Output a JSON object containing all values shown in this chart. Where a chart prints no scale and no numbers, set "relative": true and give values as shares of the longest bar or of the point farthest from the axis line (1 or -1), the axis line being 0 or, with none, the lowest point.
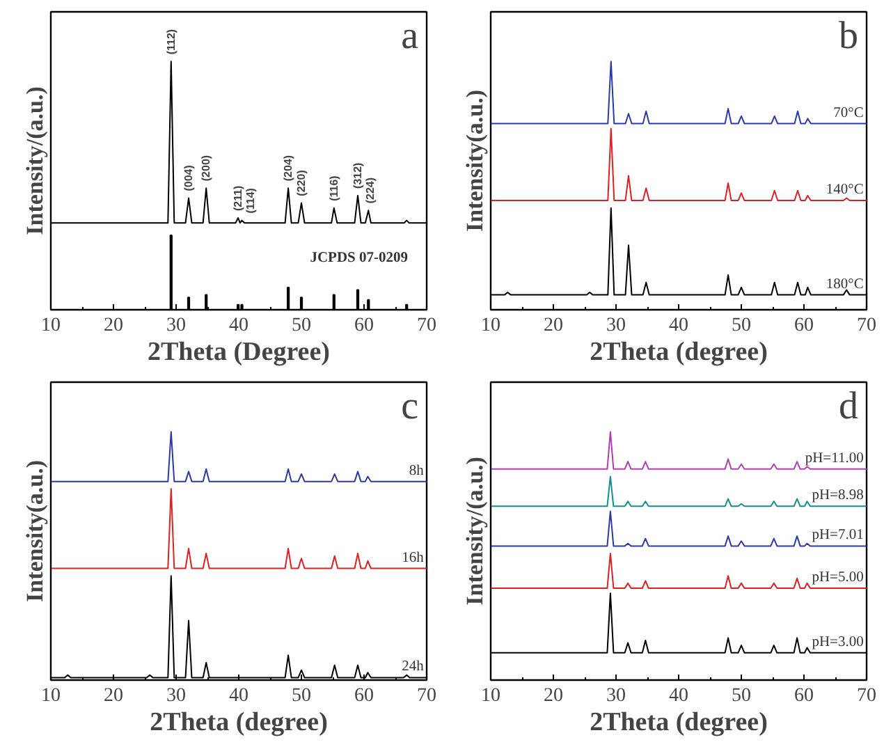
{
  "chart_data": [
    {
      "type": "line",
      "relative": true,
      "tick_labels": "x",
      "xlabel": "2Theta (Degree)",
      "ylabel": "Intensity/(a.u.)",
      "xlim": [
        10,
        70
      ],
      "xticks": [
        10,
        20,
        30,
        40,
        50,
        60,
        70
      ],
      "x": [
        10,
        28.7,
        29.2,
        29.7,
        31.5,
        32,
        32.5,
        34.3,
        34.8,
        35.3,
        39.5,
        39.9,
        40.2,
        40.5,
        40.9,
        47.4,
        47.9,
        48.4,
        49.5,
        50,
        50.5,
        54.8,
        55.2,
        55.7,
        58.5,
        59,
        59.5,
        60.2,
        60.7,
        61.1,
        66.4,
        66.8,
        67.2,
        70
      ],
      "series": [
        {
          "color": "#000000",
          "values": [
            0.35,
            0.35,
            1.0,
            0.35,
            0.35,
            0.45,
            0.35,
            0.35,
            0.49,
            0.35,
            0.35,
            0.37,
            0.35,
            0.36,
            0.35,
            0.35,
            0.49,
            0.35,
            0.35,
            0.43,
            0.35,
            0.35,
            0.41,
            0.35,
            0.35,
            0.46,
            0.35,
            0.35,
            0.4,
            0.35,
            0.35,
            0.36,
            0.35,
            0.35
          ]
        },
        {
          "type": "bar",
          "name": "JCPDS 07-0209",
          "color": "#000000",
          "x": [
            29.2,
            32,
            34.8,
            39.9,
            40.5,
            47.9,
            50,
            55.2,
            59,
            60.7,
            66.8
          ],
          "values": [
            0.3,
            0.05,
            0.06,
            0.02,
            0.02,
            0.09,
            0.05,
            0.06,
            0.08,
            0.04,
            0.02
          ]
        }
      ],
      "annotations": [
        "a",
        {
          "text": "(112)",
          "x": 29.2,
          "y": 1.0
        },
        {
          "text": "(004)",
          "x": 32,
          "y": 0.45
        },
        {
          "text": "(200)",
          "x": 34.8,
          "y": 0.49
        },
        {
          "text": "(211)",
          "x": 39.9,
          "y": 0.37
        },
        {
          "text": "(114)",
          "x": 40.5,
          "y": 0.36
        },
        {
          "text": "(204)",
          "x": 47.9,
          "y": 0.49
        },
        {
          "text": "(220)",
          "x": 50,
          "y": 0.43
        },
        {
          "text": "(116)",
          "x": 55.2,
          "y": 0.41
        },
        {
          "text": "(312)",
          "x": 59,
          "y": 0.46
        },
        {
          "text": "(224)",
          "x": 60.7,
          "y": 0.4
        }
      ]
    },
    {
      "type": "line",
      "relative": true,
      "tick_labels": "x",
      "xlabel": "2Theta (degree)",
      "ylabel": "Intensity(a.u.)",
      "xlim": [
        10,
        70
      ],
      "xticks": [
        10,
        20,
        30,
        40,
        50,
        60,
        70
      ],
      "x": [
        10,
        12.2,
        12.7,
        13.2,
        25.3,
        25.8,
        26.3,
        28.7,
        29.2,
        29.7,
        31.5,
        32,
        32.5,
        34.3,
        34.8,
        35.3,
        47.4,
        47.9,
        48.4,
        49.5,
        50,
        50.5,
        54.8,
        55.3,
        55.8,
        58.5,
        59,
        59.5,
        60.2,
        60.6,
        61.1,
        66.3,
        66.8,
        67.3,
        70
      ],
      "series": [
        {
          "name": "70°C",
          "color": "#2b3aa8",
          "values": [
            0.75,
            0.75,
            0.75,
            0.75,
            0.75,
            0.75,
            0.75,
            0.75,
            1.0,
            0.75,
            0.75,
            0.79,
            0.75,
            0.75,
            0.8,
            0.75,
            0.75,
            0.81,
            0.75,
            0.75,
            0.78,
            0.75,
            0.75,
            0.78,
            0.75,
            0.75,
            0.8,
            0.75,
            0.75,
            0.77,
            0.75,
            0.75,
            0.75,
            0.75,
            0.75
          ]
        },
        {
          "name": "140°C",
          "color": "#e02020",
          "values": [
            0.44,
            0.44,
            0.44,
            0.44,
            0.44,
            0.44,
            0.44,
            0.44,
            0.73,
            0.44,
            0.44,
            0.54,
            0.44,
            0.44,
            0.49,
            0.44,
            0.44,
            0.51,
            0.44,
            0.44,
            0.47,
            0.44,
            0.44,
            0.48,
            0.44,
            0.44,
            0.48,
            0.44,
            0.44,
            0.46,
            0.44,
            0.44,
            0.45,
            0.44,
            0.44
          ]
        },
        {
          "name": "180°C",
          "color": "#000000",
          "values": [
            0.06,
            0.06,
            0.07,
            0.06,
            0.06,
            0.07,
            0.06,
            0.06,
            0.41,
            0.06,
            0.06,
            0.26,
            0.06,
            0.06,
            0.11,
            0.06,
            0.06,
            0.14,
            0.06,
            0.06,
            0.09,
            0.06,
            0.06,
            0.11,
            0.06,
            0.06,
            0.11,
            0.06,
            0.06,
            0.09,
            0.06,
            0.06,
            0.08,
            0.06,
            0.06
          ]
        }
      ],
      "annotations": [
        "b"
      ]
    },
    {
      "type": "line",
      "relative": true,
      "tick_labels": "x",
      "xlabel": "2Theta (degree)",
      "ylabel": "Intensity(a.u.)",
      "xlim": [
        10,
        70
      ],
      "xticks": [
        10,
        20,
        30,
        40,
        50,
        60,
        70
      ],
      "x": [
        10,
        12.2,
        12.7,
        13.2,
        25.3,
        25.8,
        26.3,
        28.7,
        29.2,
        29.7,
        31.5,
        32,
        32.5,
        34.3,
        34.8,
        35.3,
        47.4,
        47.9,
        48.4,
        49.5,
        50,
        50.5,
        54.8,
        55.3,
        55.8,
        58.5,
        59,
        59.5,
        60.2,
        60.6,
        61.1,
        66.3,
        66.8,
        67.3,
        70
      ],
      "series": [
        {
          "name": "8h",
          "color": "#2b3aa8",
          "values": [
            0.8,
            0.8,
            0.8,
            0.8,
            0.8,
            0.8,
            0.8,
            0.8,
            1.0,
            0.8,
            0.8,
            0.84,
            0.8,
            0.8,
            0.85,
            0.8,
            0.8,
            0.85,
            0.8,
            0.8,
            0.83,
            0.8,
            0.8,
            0.83,
            0.8,
            0.8,
            0.84,
            0.8,
            0.8,
            0.82,
            0.8,
            0.8,
            0.8,
            0.8,
            0.8
          ]
        },
        {
          "name": "16h",
          "color": "#e02020",
          "values": [
            0.45,
            0.45,
            0.45,
            0.45,
            0.45,
            0.45,
            0.45,
            0.45,
            0.77,
            0.45,
            0.45,
            0.53,
            0.45,
            0.45,
            0.51,
            0.45,
            0.45,
            0.53,
            0.45,
            0.45,
            0.49,
            0.45,
            0.45,
            0.5,
            0.45,
            0.45,
            0.51,
            0.45,
            0.45,
            0.48,
            0.45,
            0.45,
            0.45,
            0.45,
            0.45
          ]
        },
        {
          "name": "24h",
          "color": "#000000",
          "values": [
            0.01,
            0.01,
            0.02,
            0.01,
            0.01,
            0.02,
            0.01,
            0.01,
            0.42,
            0.01,
            0.01,
            0.24,
            0.01,
            0.01,
            0.07,
            0.01,
            0.01,
            0.1,
            0.01,
            0.01,
            0.04,
            0.01,
            0.01,
            0.06,
            0.01,
            0.01,
            0.06,
            0.01,
            0.01,
            0.03,
            0.01,
            0.01,
            0.02,
            0.01,
            0.01
          ]
        }
      ],
      "annotations": [
        "c"
      ]
    },
    {
      "type": "line",
      "relative": true,
      "tick_labels": "x",
      "xlabel": "2Theta (degree)",
      "ylabel": "Intensity/(a.u.)",
      "xlim": [
        10,
        70
      ],
      "xticks": [
        10,
        20,
        30,
        40,
        50,
        60,
        70
      ],
      "x": [
        10,
        28.6,
        29.1,
        29.6,
        31.4,
        31.9,
        32.4,
        34.2,
        34.7,
        35.2,
        47.4,
        47.9,
        48.4,
        49.5,
        50,
        50.5,
        54.7,
        55.2,
        55.7,
        58.4,
        58.9,
        59.4,
        60.1,
        60.5,
        61,
        70
      ],
      "series": [
        {
          "name": "pH=11.00",
          "color": "#b040b0",
          "values": [
            0.85,
            0.85,
            1.0,
            0.85,
            0.85,
            0.88,
            0.85,
            0.85,
            0.88,
            0.85,
            0.85,
            0.89,
            0.85,
            0.85,
            0.87,
            0.85,
            0.85,
            0.87,
            0.85,
            0.85,
            0.88,
            0.85,
            0.85,
            0.86,
            0.85,
            0.85
          ]
        },
        {
          "name": "pH=8.98",
          "color": "#109090",
          "values": [
            0.7,
            0.7,
            0.82,
            0.7,
            0.7,
            0.72,
            0.7,
            0.7,
            0.72,
            0.7,
            0.7,
            0.73,
            0.7,
            0.7,
            0.71,
            0.7,
            0.7,
            0.72,
            0.7,
            0.7,
            0.73,
            0.7,
            0.7,
            0.72,
            0.7,
            0.7
          ]
        },
        {
          "name": "pH=7.01",
          "color": "#2b3aa8",
          "values": [
            0.54,
            0.54,
            0.68,
            0.54,
            0.54,
            0.55,
            0.54,
            0.54,
            0.57,
            0.54,
            0.54,
            0.58,
            0.54,
            0.54,
            0.56,
            0.54,
            0.54,
            0.57,
            0.54,
            0.54,
            0.58,
            0.54,
            0.54,
            0.55,
            0.54,
            0.54
          ]
        },
        {
          "name": "pH=5.00",
          "color": "#e02020",
          "values": [
            0.37,
            0.37,
            0.51,
            0.37,
            0.37,
            0.39,
            0.37,
            0.37,
            0.4,
            0.37,
            0.37,
            0.42,
            0.37,
            0.37,
            0.39,
            0.37,
            0.37,
            0.39,
            0.37,
            0.37,
            0.41,
            0.37,
            0.37,
            0.39,
            0.37,
            0.37
          ]
        },
        {
          "name": "pH=3.00",
          "color": "#000000",
          "values": [
            0.11,
            0.11,
            0.35,
            0.11,
            0.11,
            0.15,
            0.11,
            0.11,
            0.16,
            0.11,
            0.11,
            0.17,
            0.11,
            0.11,
            0.14,
            0.11,
            0.11,
            0.14,
            0.11,
            0.11,
            0.17,
            0.11,
            0.11,
            0.13,
            0.11,
            0.11
          ]
        }
      ],
      "annotations": [
        "d"
      ]
    }
  ]
}
